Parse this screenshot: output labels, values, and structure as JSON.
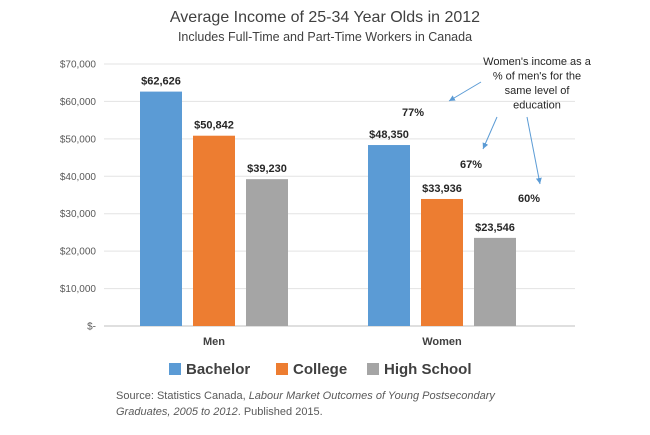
{
  "chart_data": {
    "type": "bar",
    "title": "Average Income of 25-34 Year Olds in 2012",
    "subtitle": "Includes Full-Time and Part-Time Workers in Canada",
    "categories": [
      "Men",
      "Women"
    ],
    "series": [
      {
        "name": "Bachelor",
        "color": "#5b9bd5",
        "values": [
          62626,
          48350
        ],
        "labels": [
          "$62,626",
          "$48,350"
        ]
      },
      {
        "name": "College",
        "color": "#ed7d31",
        "values": [
          50842,
          33936
        ],
        "labels": [
          "$50,842",
          "$33,936"
        ]
      },
      {
        "name": "High School",
        "color": "#a5a5a5",
        "values": [
          39230,
          23546
        ],
        "labels": [
          "$39,230",
          "$23,546"
        ]
      }
    ],
    "ylim": [
      0,
      70000
    ],
    "yticks": [
      {
        "value": 0,
        "label": "$-"
      },
      {
        "value": 10000,
        "label": "$10,000"
      },
      {
        "value": 20000,
        "label": "$20,000"
      },
      {
        "value": 30000,
        "label": "$30,000"
      },
      {
        "value": 40000,
        "label": "$40,000"
      },
      {
        "value": 50000,
        "label": "$50,000"
      },
      {
        "value": 60000,
        "label": "$60,000"
      },
      {
        "value": 70000,
        "label": "$70,000"
      }
    ],
    "grid": true,
    "legend_position": "bottom",
    "annotation": {
      "lines": [
        "Women's income as a",
        "% of men's for the",
        "same level of",
        "education"
      ],
      "percentages": [
        "77%",
        "67%",
        "60%"
      ],
      "arrow_color": "#5b9bd5"
    }
  },
  "source": {
    "prefix": "Source: Statistics Canada, ",
    "italic": "Labour Market Outcomes of Young Postsecondary Graduates, 2005 to 2012",
    "suffix": ". Published 2015."
  }
}
